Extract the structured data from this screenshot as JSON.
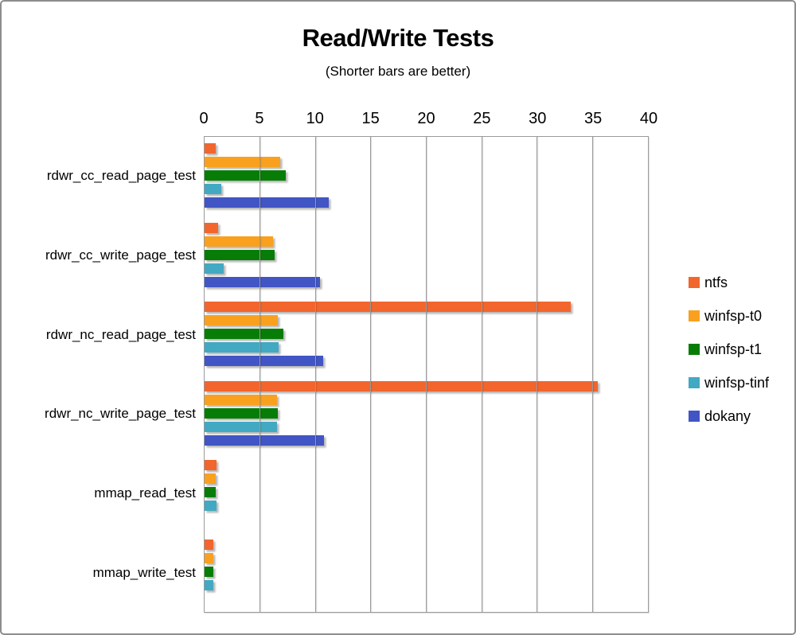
{
  "window": {
    "background": "#ffffff",
    "border_color": "#8d8d8d"
  },
  "chart_data": {
    "type": "bar",
    "orientation": "horizontal",
    "title": "Read/Write Tests",
    "subtitle": "(Shorter bars are better)",
    "note": "Shorter bars are better",
    "grid": true,
    "legend_position": "right",
    "axis": {
      "min": 0,
      "max": 40,
      "tick_step": 5,
      "ticks": [
        0,
        5,
        10,
        15,
        20,
        25,
        30,
        35,
        40
      ]
    },
    "categories": [
      "rdwr_cc_read_page_test",
      "rdwr_cc_write_page_test",
      "rdwr_nc_read_page_test",
      "rdwr_nc_write_page_test",
      "mmap_read_test",
      "mmap_write_test"
    ],
    "series": [
      {
        "name": "ntfs",
        "color": "#F2662D",
        "values": [
          1.0,
          1.2,
          33.0,
          35.5,
          1.1,
          0.8
        ]
      },
      {
        "name": "winfsp-t0",
        "color": "#F9A11F",
        "values": [
          6.8,
          6.2,
          6.6,
          6.5,
          1.0,
          0.8
        ]
      },
      {
        "name": "winfsp-t1",
        "color": "#077D07",
        "values": [
          7.3,
          6.3,
          7.1,
          6.6,
          1.0,
          0.8
        ]
      },
      {
        "name": "winfsp-tinf",
        "color": "#42A9C3",
        "values": [
          1.5,
          1.7,
          6.7,
          6.5,
          1.1,
          0.8
        ]
      },
      {
        "name": "dokany",
        "color": "#4155C4",
        "values": [
          11.2,
          10.4,
          10.7,
          10.8,
          0,
          0
        ]
      }
    ]
  }
}
